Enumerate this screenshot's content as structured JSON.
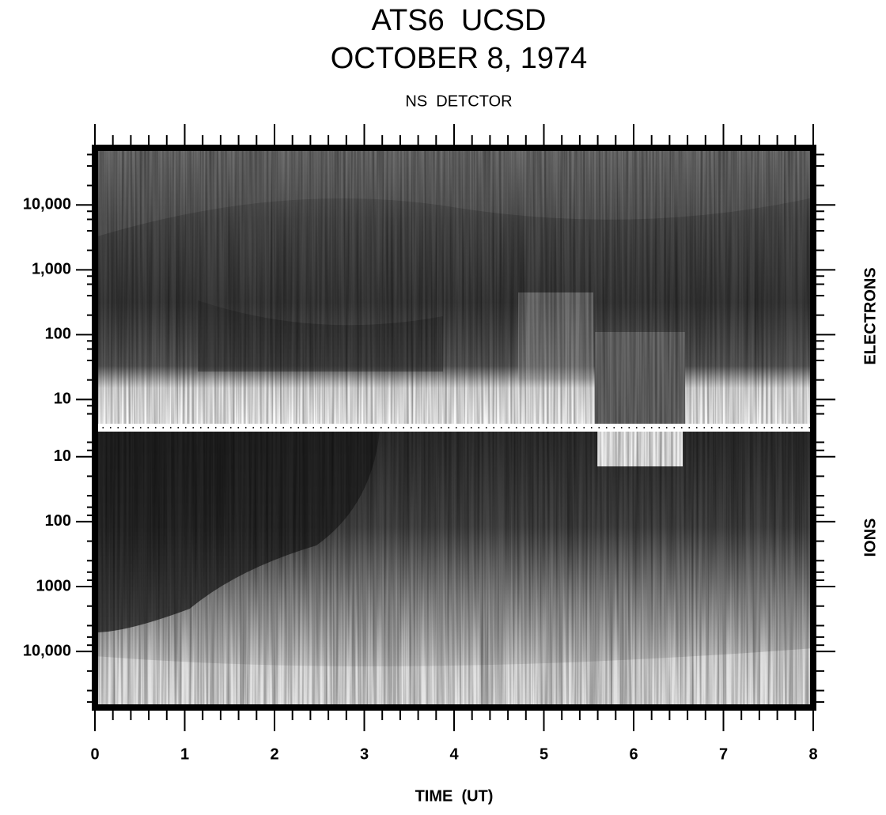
{
  "chart_data": {
    "type": "spectrogram",
    "title": "ATS6  UCSD",
    "subtitle": "OCTOBER 8, 1974",
    "detector": "NS  DETCTOR",
    "x_label": "TIME  (UT)",
    "xlim": [
      0,
      8
    ],
    "xticks": [
      0,
      1,
      2,
      3,
      4,
      5,
      6,
      7,
      8
    ],
    "panels": [
      {
        "name": "ELECTRONS",
        "log": true,
        "inverted": false,
        "ylim": [
          4,
          70000
        ],
        "yticks": [
          {
            "value": 10000,
            "label": "10,000"
          },
          {
            "value": 1000,
            "label": "1,000"
          },
          100,
          10
        ]
      },
      {
        "name": "IONS",
        "log": true,
        "inverted": true,
        "ylim": [
          4,
          67000
        ],
        "yticks": [
          10,
          100,
          1000,
          {
            "value": 10000,
            "label": "10,000"
          }
        ]
      }
    ]
  }
}
